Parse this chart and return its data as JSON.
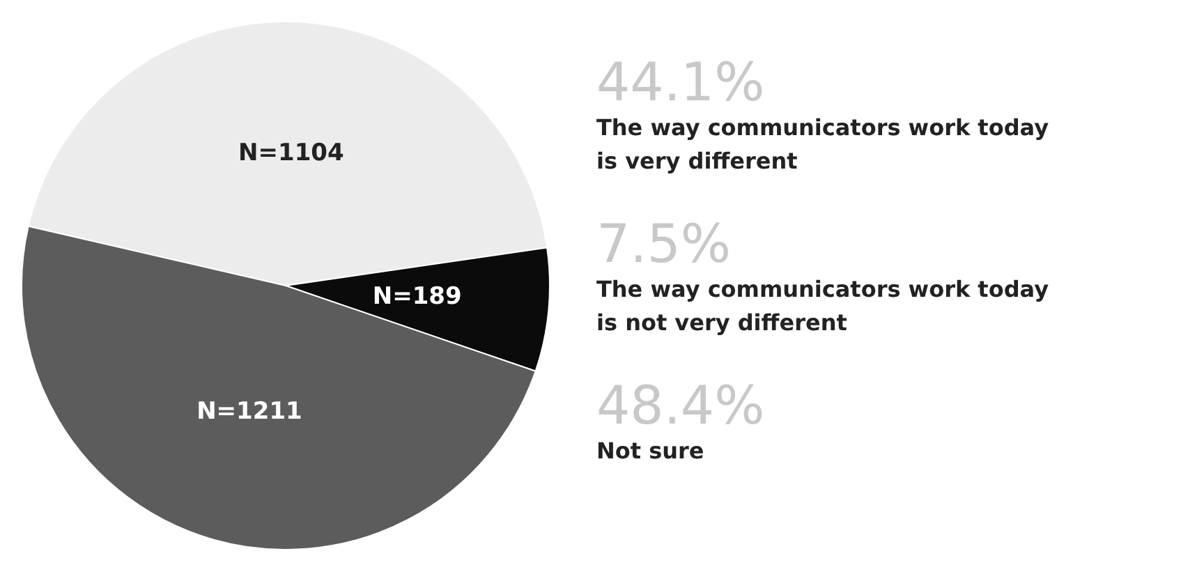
{
  "chart_data": {
    "type": "pie",
    "categories": [
      "The way communicators work today is very different",
      "The way communicators work today is not very different",
      "Not sure"
    ],
    "values": [
      1104,
      189,
      1211
    ],
    "value_labels": [
      "N=1104",
      "N=189",
      "N=1211"
    ],
    "annotations": [
      "44.1%",
      "7.5%",
      "48.4%"
    ],
    "colors": [
      "#ececec",
      "#0b0b0b",
      "#5c5c5c"
    ]
  }
}
